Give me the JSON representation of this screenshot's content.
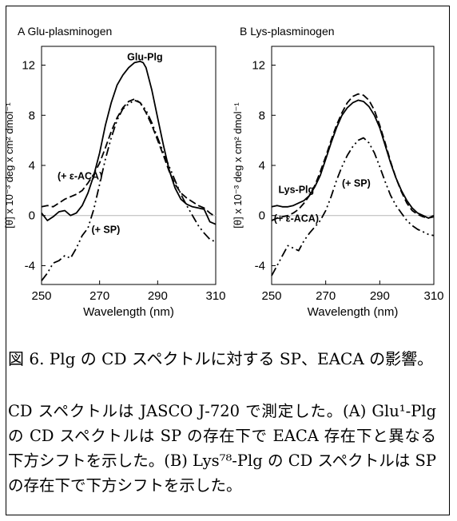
{
  "chart_data": [
    {
      "type": "line",
      "title": "A  Glu-plasminogen",
      "xlabel": "Wavelength (nm)",
      "ylabel": "[θ] x 10⁻³ deg x cm² dmol⁻¹",
      "xlim": [
        250,
        310
      ],
      "ylim": [
        -5.5,
        13.5
      ],
      "xticks": [
        250,
        270,
        290,
        310
      ],
      "yticks": [
        -4,
        0,
        4,
        8,
        12
      ],
      "zero_line": true,
      "annotations": [
        {
          "text": "Glu-Plg",
          "x": 279.5,
          "y": 12.4
        },
        {
          "text": "(+ ε-ACA)",
          "x": 255.5,
          "y": 2.9
        },
        {
          "text": "(+ SP)",
          "x": 267.2,
          "y": -1.4
        }
      ],
      "series": [
        {
          "style": "solid",
          "x": [
            250,
            252,
            254,
            256,
            258,
            260,
            262,
            264,
            266,
            268,
            270,
            272,
            274,
            276,
            278,
            280,
            282,
            284,
            285,
            286,
            288,
            290,
            292,
            294,
            296,
            298,
            300,
            302,
            304,
            306,
            308,
            310
          ],
          "y": [
            0.2,
            -0.4,
            -0.1,
            0.3,
            0.4,
            0.0,
            0.2,
            0.8,
            1.8,
            3.2,
            5.0,
            7.2,
            9.0,
            10.4,
            11.2,
            11.8,
            12.2,
            12.3,
            12.2,
            11.8,
            10.0,
            7.8,
            5.6,
            3.6,
            2.2,
            1.3,
            0.9,
            0.7,
            0.6,
            0.5,
            -0.5,
            -0.7
          ]
        },
        {
          "style": "dashed",
          "x": [
            250,
            252,
            254,
            256,
            258,
            260,
            262,
            264,
            266,
            268,
            270,
            272,
            274,
            276,
            278,
            280,
            282,
            284,
            286,
            288,
            290,
            292,
            294,
            296,
            298,
            300,
            302,
            304,
            306,
            308,
            310
          ],
          "y": [
            0.7,
            0.8,
            0.7,
            1.0,
            1.3,
            1.5,
            1.7,
            2.0,
            2.6,
            3.3,
            4.2,
            5.4,
            6.7,
            7.8,
            8.6,
            9.1,
            9.3,
            9.0,
            8.2,
            7.2,
            6.0,
            4.8,
            3.5,
            2.5,
            1.8,
            1.4,
            1.1,
            0.8,
            0.6,
            0.2,
            -0.1
          ]
        },
        {
          "style": "dashdotdot",
          "x": [
            250,
            252,
            254,
            256,
            258,
            260,
            262,
            264,
            266,
            268,
            270,
            272,
            274,
            276,
            278,
            280,
            282,
            284,
            286,
            288,
            290,
            292,
            294,
            296,
            298,
            300,
            302,
            304,
            306,
            308,
            310
          ],
          "y": [
            -5.2,
            -4.6,
            -3.8,
            -3.6,
            -3.2,
            -3.4,
            -2.6,
            -1.6,
            -1.0,
            0.5,
            2.5,
            4.5,
            6.2,
            7.6,
            8.5,
            8.9,
            9.2,
            9.0,
            8.4,
            7.4,
            6.2,
            5.0,
            3.9,
            2.8,
            1.7,
            0.8,
            0.0,
            -0.8,
            -1.4,
            -1.9,
            -2.1
          ]
        }
      ]
    },
    {
      "type": "line",
      "title": "B  Lys-plasminogen",
      "xlabel": "Wavelength (nm)",
      "ylabel": "[θ] x 10⁻³ deg x cm² dmol⁻¹",
      "xlim": [
        250,
        310
      ],
      "ylim": [
        -5.5,
        13.5
      ],
      "xticks": [
        250,
        270,
        290,
        310
      ],
      "yticks": [
        -4,
        0,
        4,
        8,
        12
      ],
      "zero_line": true,
      "annotations": [
        {
          "text": "Lys-Plg",
          "x": 252.5,
          "y": 1.8
        },
        {
          "text": "(+ SP)",
          "x": 276.0,
          "y": 2.3
        },
        {
          "text": "(+ ε-ACA)",
          "x": 250.8,
          "y": -0.5
        }
      ],
      "series": [
        {
          "style": "solid",
          "x": [
            250,
            252,
            254,
            256,
            258,
            260,
            262,
            264,
            266,
            268,
            270,
            272,
            274,
            276,
            278,
            280,
            282,
            284,
            286,
            288,
            290,
            292,
            294,
            296,
            298,
            300,
            302,
            304,
            306,
            308,
            310
          ],
          "y": [
            0.7,
            0.8,
            0.7,
            0.7,
            0.8,
            1.0,
            1.2,
            1.6,
            2.3,
            3.2,
            4.5,
            5.8,
            7.0,
            8.0,
            8.6,
            9.0,
            9.2,
            9.1,
            8.7,
            8.0,
            7.0,
            5.6,
            4.2,
            3.0,
            2.0,
            1.2,
            0.6,
            0.2,
            0.0,
            -0.2,
            0.0
          ]
        },
        {
          "style": "dashed",
          "x": [
            250,
            252,
            254,
            256,
            258,
            260,
            262,
            264,
            266,
            268,
            270,
            272,
            274,
            276,
            278,
            280,
            282,
            284,
            286,
            288,
            290,
            292,
            294,
            296,
            298,
            300,
            302,
            304,
            306,
            308,
            310
          ],
          "y": [
            -0.4,
            -0.2,
            -0.1,
            0.0,
            0.2,
            0.5,
            1.0,
            1.6,
            2.4,
            3.5,
            4.7,
            6.0,
            7.2,
            8.2,
            9.0,
            9.5,
            9.7,
            9.6,
            9.2,
            8.4,
            7.2,
            5.8,
            4.3,
            3.0,
            1.9,
            1.0,
            0.4,
            0.1,
            -0.1,
            -0.2,
            -0.1
          ]
        },
        {
          "style": "dashdotdot",
          "x": [
            250,
            252,
            254,
            256,
            258,
            260,
            262,
            264,
            266,
            268,
            270,
            272,
            274,
            276,
            278,
            280,
            282,
            284,
            286,
            288,
            290,
            292,
            294,
            296,
            298,
            300,
            302,
            304,
            306,
            308,
            310
          ],
          "y": [
            -4.8,
            -4.0,
            -3.2,
            -2.4,
            -2.6,
            -2.8,
            -2.0,
            -1.4,
            -0.9,
            -0.4,
            0.4,
            1.5,
            2.8,
            3.9,
            4.8,
            5.5,
            6.0,
            6.2,
            5.8,
            5.0,
            3.9,
            2.7,
            1.6,
            0.8,
            0.2,
            -0.4,
            -0.8,
            -1.1,
            -1.3,
            -1.5,
            -1.6
          ]
        }
      ]
    }
  ],
  "caption": {
    "title": "図 6. Plg の CD スペクトルに対する SP、EACA の影響。",
    "body": "CD スペクトルは JASCO J-720 で測定した。(A) Glu¹-Plg の CD スペクトルは SP の存在下で EACA 存在下と異なる下方シフトを示した。(B) Lys⁷⁸-Plg の CD スペクトルは SP の存在下で下方シフトを示した。"
  }
}
